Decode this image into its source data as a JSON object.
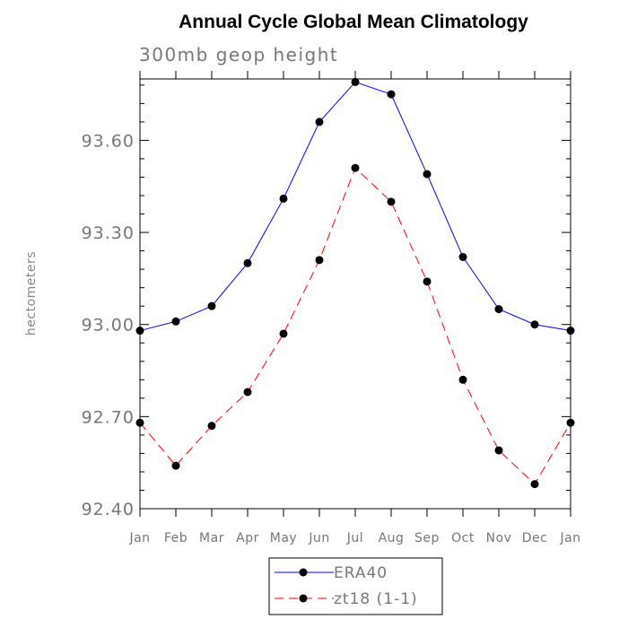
{
  "chart_data": {
    "type": "line",
    "title": "Annual Cycle Global Mean Climatology",
    "subtitle": "300mb geop height",
    "xlabel": "",
    "ylabel": "hectometers",
    "categories": [
      "Jan",
      "Feb",
      "Mar",
      "Apr",
      "May",
      "Jun",
      "Jul",
      "Aug",
      "Sep",
      "Oct",
      "Nov",
      "Dec",
      "Jan"
    ],
    "ylim": [
      92.4,
      93.8
    ],
    "yticks": [
      "92.40",
      "92.70",
      "93.00",
      "93.30",
      "93.60"
    ],
    "grid": false,
    "legend_position": "bottom",
    "series": [
      {
        "name": "ERA40",
        "color": "#0000ff",
        "line_style": "solid",
        "values": [
          92.98,
          93.01,
          93.06,
          93.2,
          93.41,
          93.66,
          93.79,
          93.75,
          93.49,
          93.22,
          93.05,
          93.0,
          92.98
        ]
      },
      {
        "name": "zt18 (1-1)",
        "color": "#ff0000",
        "line_style": "dashed",
        "values": [
          92.68,
          92.54,
          92.67,
          92.78,
          92.97,
          93.21,
          93.51,
          93.4,
          93.14,
          92.82,
          92.59,
          92.48,
          92.68
        ]
      }
    ]
  }
}
